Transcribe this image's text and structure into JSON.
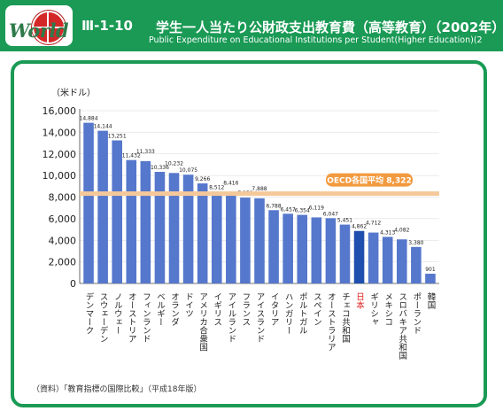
{
  "header": {
    "logo_text": "World",
    "code": "Ⅲ-1-10",
    "title_jp": "学生一人当たり公財政支出教育費（高等教育）（2002年）",
    "title_en": "Public Expenditure on Educational Institutions per Student(Higher Education)(2"
  },
  "colors": {
    "header_bg": "#1a9a55",
    "bar": "#5577cc",
    "bar_highlight": "#1f4fae",
    "avg_line": "#f5c89a",
    "avg_label_bg": "#f29a3f",
    "japan_label": "#e02020"
  },
  "chart_data": {
    "type": "bar",
    "ylabel": "（米ドル）",
    "ylim": [
      0,
      16000
    ],
    "yticks": [
      "0",
      "2,000",
      "4,000",
      "6,000",
      "8,000",
      "10,000",
      "12,000",
      "14,000",
      "16,000"
    ],
    "categories": [
      "デンマーク",
      "スウェーデン",
      "ノルウェー",
      "オーストリア",
      "フィンランド",
      "ベルギー",
      "オランダ",
      "ドイツ",
      "アメリカ合衆国",
      "イギリス",
      "アイルランド",
      "フランス",
      "アイスランド",
      "イタリア",
      "ハンガリー",
      "ポルトガル",
      "スペイン",
      "オーストラリア",
      "チェコ共和国",
      "日本",
      "ギリシャ",
      "メキシコ",
      "スロバキア共和国",
      "ポーランド",
      "韓国"
    ],
    "values": [
      14884,
      14144,
      13251,
      11432,
      11333,
      10336,
      10232,
      10075,
      9266,
      8512,
      8416,
      7950,
      7888,
      6788,
      6457,
      6354,
      6119,
      6047,
      5451,
      4862,
      4712,
      4313,
      4082,
      3380,
      901
    ],
    "value_labels": [
      "14,884",
      "14,144",
      "13,251",
      "11,432",
      "11,333",
      "10,336",
      "10,232",
      "10,075",
      "9,266",
      "8,512",
      "8,416",
      "7,950",
      "7,888",
      "6,788",
      "6,457",
      "6,354",
      "6,119",
      "6,047",
      "5,451",
      "4,862",
      "4,712",
      "4,313",
      "4,082",
      "3,380",
      "901"
    ],
    "highlight": "日本",
    "reference_line": {
      "value": 8322,
      "label": "OECD各国平均 8,322"
    }
  },
  "source": "（資料）「教育指標の国際比較」（平成18年版）"
}
